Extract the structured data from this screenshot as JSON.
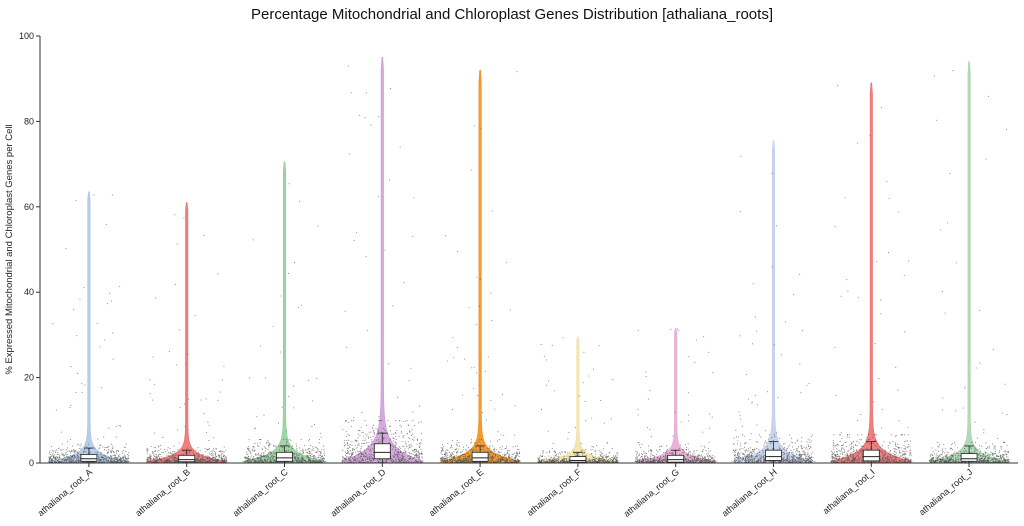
{
  "chart_data": {
    "type": "violin",
    "title": "Percentage Mitochondrial and Chloroplast Genes Distribution [athaliana_roots]",
    "xlabel": "",
    "ylabel": "% Expressed Mitochondrial and Chloroplast Genes per Cell",
    "ylim": [
      0,
      100
    ],
    "yticks": [
      0,
      20,
      40,
      60,
      80,
      100
    ],
    "grid": false,
    "legend": "none",
    "categories": [
      "athaliana_root_A",
      "athaliana_root_B",
      "athaliana_root_C",
      "athaliana_root_D",
      "athaliana_root_E",
      "athaliana_root_F",
      "athaliana_root_G",
      "athaliana_root_H",
      "athaliana_root_I",
      "athaliana_root_J"
    ],
    "series": [
      {
        "category": "athaliana_root_A",
        "color": "#a9c4e8",
        "max": 63.5,
        "q1": 0.4,
        "median": 1.0,
        "q3": 2.0,
        "whisker_low": 0,
        "whisker_high": 3.5
      },
      {
        "category": "athaliana_root_B",
        "color": "#ec6a6a",
        "max": 61.0,
        "q1": 0.3,
        "median": 0.8,
        "q3": 1.8,
        "whisker_low": 0,
        "whisker_high": 3.0
      },
      {
        "category": "athaliana_root_C",
        "color": "#90cc98",
        "max": 70.5,
        "q1": 0.4,
        "median": 1.2,
        "q3": 2.5,
        "whisker_low": 0,
        "whisker_high": 4.0
      },
      {
        "category": "athaliana_root_D",
        "color": "#cc9ad6",
        "max": 95.0,
        "q1": 1.0,
        "median": 2.5,
        "q3": 4.5,
        "whisker_low": 0,
        "whisker_high": 7.0
      },
      {
        "category": "athaliana_root_E",
        "color": "#f08a10",
        "max": 92.0,
        "q1": 0.4,
        "median": 1.2,
        "q3": 2.5,
        "whisker_low": 0,
        "whisker_high": 4.0
      },
      {
        "category": "athaliana_root_F",
        "color": "#f2e0a4",
        "max": 29.5,
        "q1": 0.2,
        "median": 0.6,
        "q3": 1.5,
        "whisker_low": 0,
        "whisker_high": 2.5
      },
      {
        "category": "athaliana_root_G",
        "color": "#e6a6d2",
        "max": 31.5,
        "q1": 0.2,
        "median": 0.8,
        "q3": 1.8,
        "whisker_low": 0,
        "whisker_high": 3.0
      },
      {
        "category": "athaliana_root_H",
        "color": "#c2cdec",
        "max": 75.5,
        "q1": 0.6,
        "median": 1.5,
        "q3": 3.0,
        "whisker_low": 0,
        "whisker_high": 5.0
      },
      {
        "category": "athaliana_root_I",
        "color": "#ec6a6a",
        "max": 89.0,
        "q1": 0.5,
        "median": 1.5,
        "q3": 3.0,
        "whisker_low": 0,
        "whisker_high": 5.0
      },
      {
        "category": "athaliana_root_J",
        "color": "#a4d4ac",
        "max": 94.0,
        "q1": 0.4,
        "median": 1.0,
        "q3": 2.2,
        "whisker_low": 0,
        "whisker_high": 4.0
      }
    ]
  }
}
